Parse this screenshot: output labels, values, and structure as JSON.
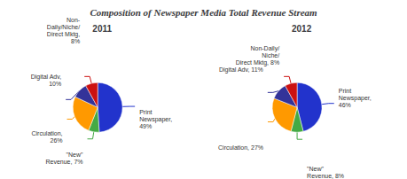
{
  "chart_data": {
    "type": "pie",
    "title": "Composition of Newspaper Media Total Revenue Stream",
    "colors": [
      "#2233cc",
      "#44aa44",
      "#ff9900",
      "#333399",
      "#cc1111"
    ],
    "data_labels": true,
    "series": [
      {
        "name": "2011",
        "values": [
          49,
          7,
          26,
          10,
          8
        ],
        "value_labels": [
          "Print\nNewspaper,\n49%",
          "\"New\"\nRevenue, 7%",
          "Circulation,\n26%",
          "Digital Adv,\n10%",
          "Non-\nDaily/Niche/\nDirect Mktg,\n8%"
        ]
      },
      {
        "name": "2012",
        "values": [
          46,
          8,
          27,
          11,
          8
        ],
        "value_labels": [
          "Print\nNewspaper,\n46%",
          "\"New\"\nRevenue, 8%",
          "Circulation, 27%",
          "Digital Adv, 11%",
          "Non-Daily/\nNiche/\nDirect Mktg, 8%"
        ]
      }
    ]
  }
}
